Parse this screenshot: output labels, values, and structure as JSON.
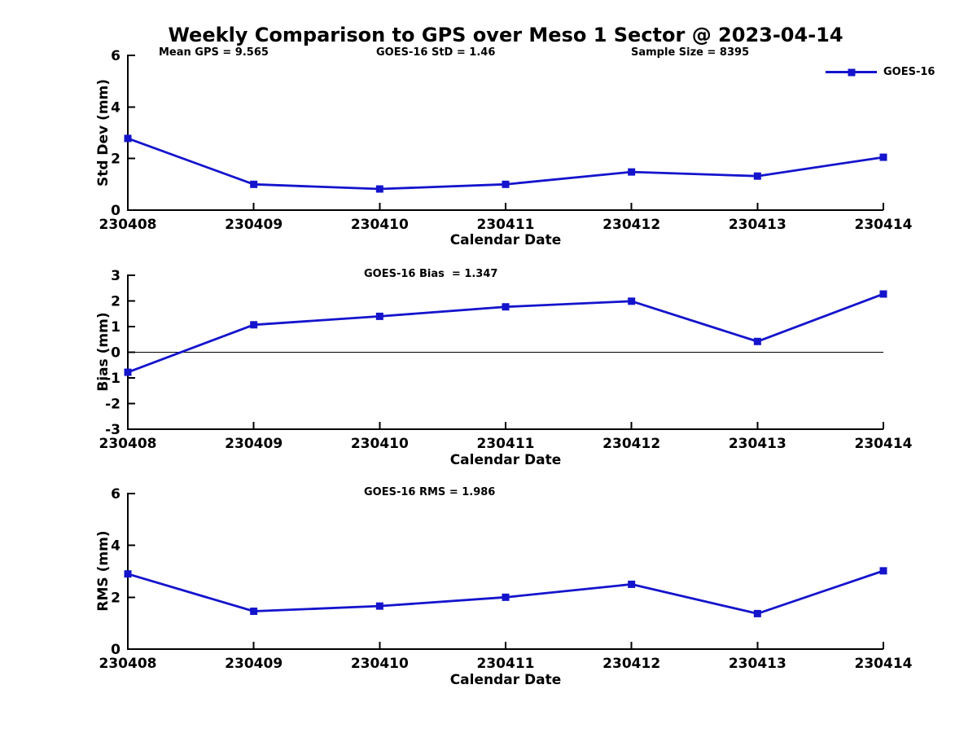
{
  "title": "Weekly Comparison to GPS over Meso 1 Sector @ 2023-04-14",
  "colors": {
    "series": "#1414cd",
    "axis": "#000000",
    "background": "#ffffff"
  },
  "chart_data": [
    {
      "type": "line",
      "name": "std-dev",
      "annotations": {
        "left": "Mean GPS = 9.565",
        "center": "GOES-16 StD = 1.46",
        "right": "Sample Size = 8395"
      },
      "xlabel": "Calendar Date",
      "ylabel": "Std Dev (mm)",
      "categories": [
        "230408",
        "230409",
        "230410",
        "230411",
        "230412",
        "230413",
        "230414"
      ],
      "series": [
        {
          "name": "GOES-16",
          "values": [
            2.78,
            1.0,
            0.82,
            1.0,
            1.48,
            1.32,
            2.05
          ]
        }
      ],
      "ylim": [
        0,
        6
      ],
      "yticks": [
        0,
        2,
        4,
        6
      ],
      "grid": false,
      "legend": {
        "entries": [
          "GOES-16"
        ],
        "position": "top-right"
      }
    },
    {
      "type": "line",
      "name": "bias",
      "annotations": {
        "center": "GOES-16 Bias  = 1.347"
      },
      "xlabel": "Calendar Date",
      "ylabel": "Bias (mm)",
      "categories": [
        "230408",
        "230409",
        "230410",
        "230411",
        "230412",
        "230413",
        "230414"
      ],
      "series": [
        {
          "name": "GOES-16",
          "values": [
            -0.78,
            1.07,
            1.4,
            1.77,
            1.99,
            0.42,
            2.27
          ]
        }
      ],
      "ylim": [
        -3,
        3
      ],
      "yticks": [
        -3,
        -2,
        -1,
        0,
        1,
        2,
        3
      ],
      "grid": false,
      "zero_line": true
    },
    {
      "type": "line",
      "name": "rms",
      "annotations": {
        "center": "GOES-16 RMS = 1.986"
      },
      "xlabel": "Calendar Date",
      "ylabel": "RMS (mm)",
      "categories": [
        "230408",
        "230409",
        "230410",
        "230411",
        "230412",
        "230413",
        "230414"
      ],
      "series": [
        {
          "name": "GOES-16",
          "values": [
            2.9,
            1.46,
            1.66,
            2.0,
            2.5,
            1.37,
            3.02
          ]
        }
      ],
      "ylim": [
        0,
        6
      ],
      "yticks": [
        0,
        2,
        4,
        6
      ],
      "grid": false
    }
  ]
}
